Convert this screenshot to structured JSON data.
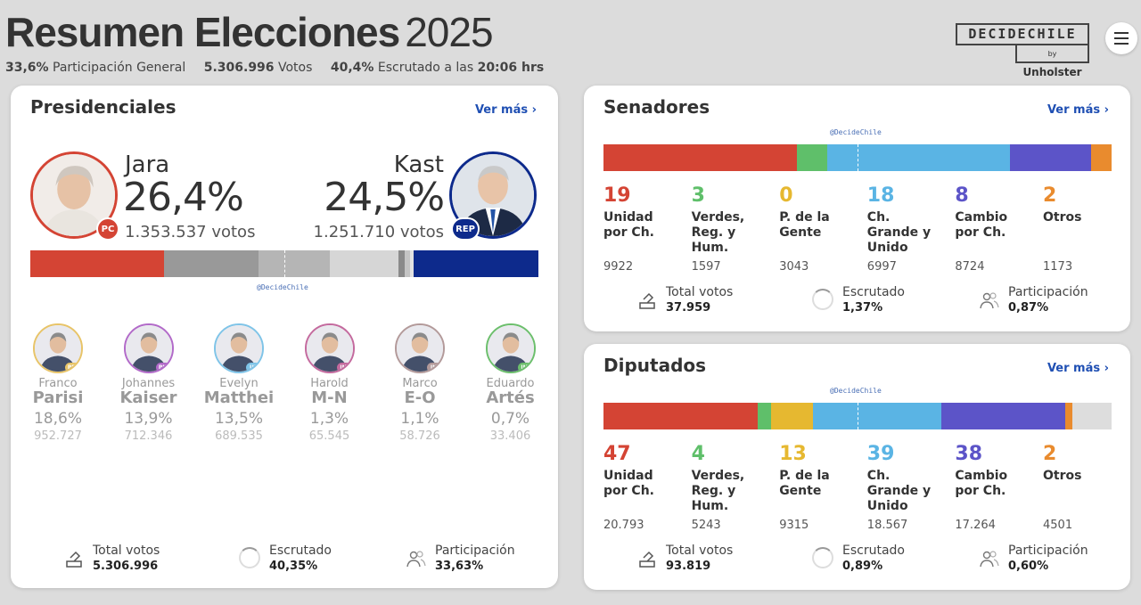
{
  "header": {
    "title_bold": "Resumen Elecciones",
    "title_year": "2025",
    "participation_value": "33,6%",
    "participation_label": "Participación General",
    "votes_value": "5.306.996",
    "votes_label": "Votos",
    "scrutinized_value": "40,4%",
    "scrutinized_label": "Escrutado a las",
    "time_value": "20:06 hrs"
  },
  "brand": {
    "top": "DECIDECHILE",
    "by": "by",
    "company": "Unholster"
  },
  "watermark": "@DecideChile",
  "presidenciales": {
    "title": "Presidenciales",
    "ver_mas": "Ver más ›",
    "leader_left": {
      "name": "Jara",
      "pct": "26,4%",
      "votes": "1.353.537 votos",
      "party": "PC",
      "color": "#d44434"
    },
    "leader_right": {
      "name": "Kast",
      "pct": "24,5%",
      "votes": "1.251.710 votos",
      "party": "REP",
      "color": "#0d2a8c"
    },
    "bar": [
      {
        "share": 26.4,
        "color": "#d44434"
      },
      {
        "share": 18.6,
        "color": "#999999"
      },
      {
        "share": 13.9,
        "color": "#b5b5b5"
      },
      {
        "share": 13.5,
        "color": "#d6d6d6"
      },
      {
        "share": 1.3,
        "color": "#8a8a8a"
      },
      {
        "share": 1.1,
        "color": "#c4c4c4"
      },
      {
        "share": 0.7,
        "color": "#e2e2e2"
      },
      {
        "share": 24.5,
        "color": "#0d2a8c"
      }
    ],
    "others": [
      {
        "first": "Franco",
        "last": "Parisi",
        "pct": "18,6%",
        "votes": "952.727",
        "party": "PDG",
        "color": "#e8c468"
      },
      {
        "first": "Johannes",
        "last": "Kaiser",
        "pct": "13,9%",
        "votes": "712.346",
        "party": "PNL",
        "color": "#b26ac9"
      },
      {
        "first": "Evelyn",
        "last": "Matthei",
        "pct": "13,5%",
        "votes": "689.535",
        "party": "UDI",
        "color": "#7fc4e8"
      },
      {
        "first": "Harold",
        "last": "M-N",
        "pct": "1,3%",
        "votes": "65.545",
        "party": "IND",
        "color": "#c46a9e"
      },
      {
        "first": "Marco",
        "last": "E-O",
        "pct": "1,1%",
        "votes": "58.726",
        "party": "IND",
        "color": "#b39a9a"
      },
      {
        "first": "Eduardo",
        "last": "Artés",
        "pct": "0,7%",
        "votes": "33.406",
        "party": "IND",
        "color": "#6cbf6c"
      }
    ],
    "stats": {
      "total_label": "Total votos",
      "total_value": "5.306.996",
      "escrutado_label": "Escrutado",
      "escrutado_value": "40,35%",
      "part_label": "Participación",
      "part_value": "33,63%"
    }
  },
  "senadores": {
    "title": "Senadores",
    "ver_mas": "Ver más ›",
    "blocks": [
      {
        "seats": "19",
        "name1": "Unidad",
        "name2": "por Ch.",
        "name3": "",
        "votes": "9922",
        "color": "#d44434"
      },
      {
        "seats": "3",
        "name1": "Verdes,",
        "name2": "Reg. y",
        "name3": "Hum.",
        "votes": "1597",
        "color": "#5fbf6a"
      },
      {
        "seats": "0",
        "name1": "P. de la",
        "name2": "Gente",
        "name3": "",
        "votes": "3043",
        "color": "#e6b830"
      },
      {
        "seats": "18",
        "name1": "Ch.",
        "name2": "Grande y",
        "name3": "Unido",
        "votes": "6997",
        "color": "#5ab4e4"
      },
      {
        "seats": "8",
        "name1": "Cambio",
        "name2": "por Ch.",
        "name3": "",
        "votes": "8724",
        "color": "#5c54c8"
      },
      {
        "seats": "2",
        "name1": "Otros",
        "name2": "",
        "name3": "",
        "votes": "1173",
        "color": "#e98b2e"
      }
    ],
    "bar": [
      {
        "share": 19,
        "color": "#d44434"
      },
      {
        "share": 3,
        "color": "#5fbf6a"
      },
      {
        "share": 18,
        "color": "#5ab4e4"
      },
      {
        "share": 8,
        "color": "#5c54c8"
      },
      {
        "share": 2,
        "color": "#e98b2e"
      }
    ],
    "stats": {
      "total_label": "Total votos",
      "total_value": "37.959",
      "escrutado_label": "Escrutado",
      "escrutado_value": "1,37%",
      "part_label": "Participación",
      "part_value": "0,87%"
    }
  },
  "diputados": {
    "title": "Diputados",
    "ver_mas": "Ver más ›",
    "blocks": [
      {
        "seats": "47",
        "name1": "Unidad",
        "name2": "por Ch.",
        "name3": "",
        "votes": "20.793",
        "color": "#d44434"
      },
      {
        "seats": "4",
        "name1": "Verdes,",
        "name2": "Reg. y",
        "name3": "Hum.",
        "votes": "5243",
        "color": "#5fbf6a"
      },
      {
        "seats": "13",
        "name1": "P. de la",
        "name2": "Gente",
        "name3": "",
        "votes": "9315",
        "color": "#e6b830"
      },
      {
        "seats": "39",
        "name1": "Ch.",
        "name2": "Grande y",
        "name3": "Unido",
        "votes": "18.567",
        "color": "#5ab4e4"
      },
      {
        "seats": "38",
        "name1": "Cambio",
        "name2": "por Ch.",
        "name3": "",
        "votes": "17.264",
        "color": "#5c54c8"
      },
      {
        "seats": "2",
        "name1": "Otros",
        "name2": "",
        "name3": "",
        "votes": "4501",
        "color": "#e98b2e"
      }
    ],
    "bar": [
      {
        "share": 47,
        "color": "#d44434"
      },
      {
        "share": 4,
        "color": "#5fbf6a"
      },
      {
        "share": 13,
        "color": "#e6b830"
      },
      {
        "share": 39,
        "color": "#5ab4e4"
      },
      {
        "share": 38,
        "color": "#5c54c8"
      },
      {
        "share": 2,
        "color": "#e98b2e"
      },
      {
        "share": 12,
        "color": "#dddddd"
      }
    ],
    "stats": {
      "total_label": "Total votos",
      "total_value": "93.819",
      "escrutado_label": "Escrutado",
      "escrutado_value": "0,89%",
      "part_label": "Participación",
      "part_value": "0,60%"
    }
  }
}
